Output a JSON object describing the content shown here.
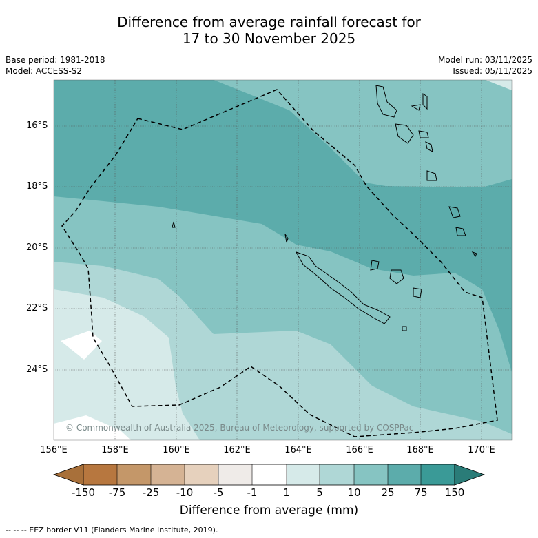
{
  "title": {
    "line1": "Difference from average rainfall forecast for",
    "line2": "17 to 30 November 2025"
  },
  "meta": {
    "base_period": "Base period: 1981-2018",
    "model": "Model: ACCESS-S2",
    "model_run": "Model run: 03/11/2025",
    "issued": "Issued: 05/11/2025"
  },
  "axes": {
    "lat_labels": [
      "16°S",
      "18°S",
      "20°S",
      "22°S",
      "24°S"
    ],
    "lon_labels": [
      "156°E",
      "158°E",
      "160°E",
      "162°E",
      "164°E",
      "166°E",
      "168°E",
      "170°E"
    ]
  },
  "colorbar": {
    "labels": [
      "-150",
      "-75",
      "-25",
      "-10",
      "-5",
      "-1",
      "1",
      "5",
      "10",
      "25",
      "75",
      "150"
    ],
    "colors": [
      "#a8703a",
      "#b7773f",
      "#c49769",
      "#d5b394",
      "#e6d1bd",
      "#efebe8",
      "#ffffff",
      "#d6eae9",
      "#afd7d6",
      "#86c4c2",
      "#5cacab",
      "#3a9a97",
      "#2a7c78"
    ],
    "title": "Difference from average (mm)"
  },
  "map": {
    "copyright": "© Commonwealth of Australia 2025, Bureau of Meteorology, supported by COSPPac",
    "fill_colors": {
      "dark": "#5cacab",
      "mid": "#86c4c2",
      "light": "#afd7d6",
      "pale": "#d6eae9",
      "white": "#ffffff"
    }
  },
  "footer": {
    "legend": "--  --  -- EEZ border V11 (Flanders Marine Institute, 2019)."
  }
}
